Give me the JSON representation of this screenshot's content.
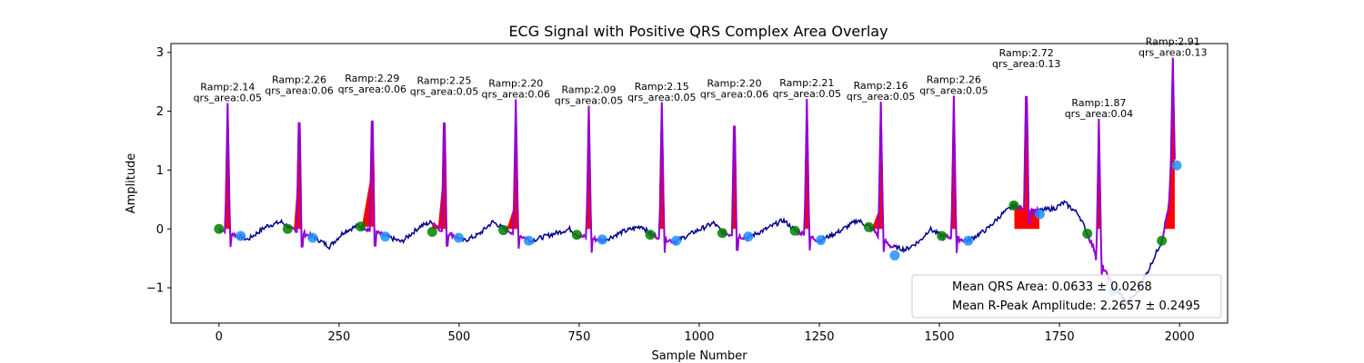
{
  "chart_data": {
    "type": "line",
    "title": "ECG Signal with Positive QRS Complex Area Overlay",
    "xlabel": "Sample Number",
    "ylabel": "Amplitude",
    "xlim": [
      -100,
      2100
    ],
    "ylim": [
      -1.6,
      3.15
    ],
    "x_ticks": [
      0,
      250,
      500,
      750,
      1000,
      1250,
      1500,
      1750,
      2000
    ],
    "y_ticks": [
      -1,
      0,
      1,
      2,
      3
    ],
    "y_tick_labels": [
      "−1",
      "0",
      "1",
      "2",
      "3"
    ],
    "grid": false,
    "colors": {
      "ecg": "#00008b",
      "qrs_segment": "#9400d3",
      "qrs_area": "#ff0000",
      "onset_marker": "#008000",
      "offset_marker": "#1e90ff"
    },
    "beats": [
      {
        "r_x": 18,
        "r_amp": 2.14,
        "label_amp": "Ramp:2.14",
        "label_area": "qrs_area:0.05",
        "onset": [
          0,
          0.0
        ],
        "offset": [
          45,
          -0.12
        ],
        "baseline": 0.0
      },
      {
        "r_x": 167,
        "r_amp": 2.26,
        "label_amp": "Ramp:2.26",
        "label_area": "qrs_area:0.06",
        "onset": [
          143,
          0.0
        ],
        "offset": [
          195,
          -0.15
        ],
        "baseline": 0.0
      },
      {
        "r_x": 319,
        "r_amp": 2.29,
        "label_amp": "Ramp:2.29",
        "label_area": "qrs_area:0.06",
        "onset": [
          295,
          0.04
        ],
        "offset": [
          346,
          -0.13
        ],
        "baseline": 0.04
      },
      {
        "r_x": 469,
        "r_amp": 2.25,
        "label_amp": "Ramp:2.25",
        "label_area": "qrs_area:0.05",
        "onset": [
          444,
          -0.05
        ],
        "offset": [
          499,
          -0.15
        ],
        "baseline": 0.0
      },
      {
        "r_x": 618,
        "r_amp": 2.2,
        "label_amp": "Ramp:2.20",
        "label_area": "qrs_area:0.06",
        "onset": [
          592,
          -0.02
        ],
        "offset": [
          645,
          -0.2
        ],
        "baseline": 0.0
      },
      {
        "r_x": 770,
        "r_amp": 2.09,
        "label_amp": "Ramp:2.09",
        "label_area": "qrs_area:0.05",
        "onset": [
          745,
          -0.1
        ],
        "offset": [
          798,
          -0.18
        ],
        "baseline": 0.0
      },
      {
        "r_x": 922,
        "r_amp": 2.15,
        "label_amp": "Ramp:2.15",
        "label_area": "qrs_area:0.05",
        "onset": [
          898,
          -0.1
        ],
        "offset": [
          952,
          -0.2
        ],
        "baseline": 0.0
      },
      {
        "r_x": 1073,
        "r_amp": 2.2,
        "label_amp": "Ramp:2.20",
        "label_area": "qrs_area:0.06",
        "onset": [
          1048,
          -0.07
        ],
        "offset": [
          1102,
          -0.13
        ],
        "baseline": 0.0
      },
      {
        "r_x": 1224,
        "r_amp": 2.21,
        "label_amp": "Ramp:2.21",
        "label_area": "qrs_area:0.05",
        "onset": [
          1199,
          -0.03
        ],
        "offset": [
          1253,
          -0.19
        ],
        "baseline": 0.0
      },
      {
        "r_x": 1378,
        "r_amp": 2.16,
        "label_amp": "Ramp:2.16",
        "label_area": "qrs_area:0.05",
        "onset": [
          1353,
          0.03
        ],
        "offset": [
          1407,
          -0.45
        ],
        "baseline": 0.0
      },
      {
        "r_x": 1530,
        "r_amp": 2.26,
        "label_amp": "Ramp:2.26",
        "label_area": "qrs_area:0.05",
        "onset": [
          1505,
          -0.12
        ],
        "offset": [
          1560,
          -0.2
        ],
        "baseline": 0.0
      },
      {
        "r_x": 1681,
        "r_amp": 2.72,
        "label_amp": "Ramp:2.72",
        "label_area": "qrs_area:0.13",
        "onset": [
          1655,
          0.4
        ],
        "offset": [
          1709,
          0.25
        ],
        "baseline": 0.0
      },
      {
        "r_x": 1832,
        "r_amp": 1.87,
        "label_amp": "Ramp:1.87",
        "label_area": "qrs_area:0.04",
        "onset": [
          1808,
          -0.08
        ],
        "offset": [
          1862,
          -1.05
        ],
        "baseline": 0.0
      },
      {
        "r_x": 1986,
        "r_amp": 2.91,
        "label_amp": "Ramp:2.91",
        "label_area": "qrs_area:0.13",
        "onset": [
          1963,
          -0.2
        ],
        "offset": [
          1994,
          1.08
        ],
        "baseline": 0.0
      }
    ],
    "baseline_wander": [
      [
        0,
        0.0
      ],
      [
        60,
        -0.18
      ],
      [
        100,
        0.05
      ],
      [
        130,
        0.12
      ],
      [
        150,
        0.0
      ],
      [
        200,
        -0.15
      ],
      [
        230,
        -0.3
      ],
      [
        260,
        -0.05
      ],
      [
        290,
        0.06
      ],
      [
        340,
        -0.1
      ],
      [
        380,
        -0.22
      ],
      [
        420,
        0.05
      ],
      [
        445,
        0.12
      ],
      [
        460,
        0.0
      ],
      [
        510,
        -0.2
      ],
      [
        540,
        -0.1
      ],
      [
        570,
        0.12
      ],
      [
        595,
        0.0
      ],
      [
        650,
        -0.2
      ],
      [
        690,
        -0.1
      ],
      [
        730,
        0.0
      ],
      [
        750,
        -0.12
      ],
      [
        800,
        -0.2
      ],
      [
        840,
        -0.05
      ],
      [
        880,
        0.05
      ],
      [
        900,
        -0.1
      ],
      [
        950,
        -0.22
      ],
      [
        990,
        -0.05
      ],
      [
        1030,
        0.1
      ],
      [
        1050,
        -0.07
      ],
      [
        1100,
        -0.15
      ],
      [
        1140,
        0.0
      ],
      [
        1175,
        0.15
      ],
      [
        1200,
        -0.03
      ],
      [
        1250,
        -0.2
      ],
      [
        1290,
        -0.05
      ],
      [
        1330,
        0.15
      ],
      [
        1355,
        0.03
      ],
      [
        1400,
        -0.3
      ],
      [
        1430,
        -0.35
      ],
      [
        1460,
        -0.2
      ],
      [
        1480,
        0.0
      ],
      [
        1505,
        -0.12
      ],
      [
        1560,
        -0.2
      ],
      [
        1600,
        0.0
      ],
      [
        1630,
        0.25
      ],
      [
        1655,
        0.4
      ],
      [
        1700,
        0.3
      ],
      [
        1740,
        0.35
      ],
      [
        1760,
        0.45
      ],
      [
        1790,
        0.25
      ],
      [
        1808,
        -0.08
      ],
      [
        1830,
        -0.5
      ],
      [
        1860,
        -0.95
      ],
      [
        1890,
        -1.25
      ],
      [
        1910,
        -1.1
      ],
      [
        1935,
        -0.7
      ],
      [
        1963,
        -0.2
      ],
      [
        1980,
        0.5
      ],
      [
        1994,
        1.08
      ]
    ],
    "legend": {
      "position": "lower right",
      "entries": [
        "Mean QRS Area: 0.0633 ± 0.0268",
        "Mean R-Peak Amplitude: 2.2657 ± 0.2495"
      ]
    }
  }
}
